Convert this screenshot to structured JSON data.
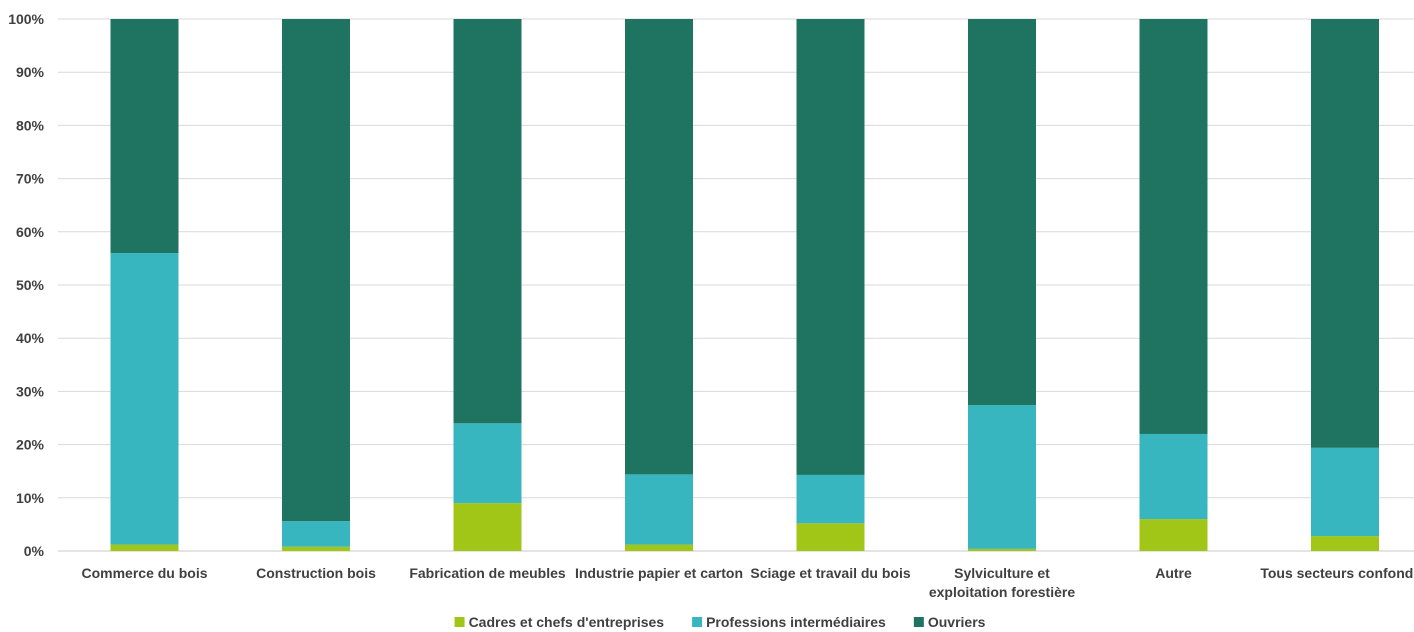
{
  "chart_data": {
    "type": "bar",
    "stacked": "percent",
    "title": "",
    "xlabel": "",
    "ylabel": "",
    "ylim": [
      0,
      100
    ],
    "yticks": [
      "0%",
      "10%",
      "20%",
      "30%",
      "40%",
      "50%",
      "60%",
      "70%",
      "80%",
      "90%",
      "100%"
    ],
    "grid": true,
    "legend": "bottom",
    "categories": [
      [
        "Commerce du bois"
      ],
      [
        "Construction bois"
      ],
      [
        "Fabrication de meubles"
      ],
      [
        "Industrie papier et carton"
      ],
      [
        "Sciage et travail du bois"
      ],
      [
        "Sylviculture et",
        "exploitation forestière"
      ],
      [
        "Autre"
      ],
      [
        "Tous secteurs confondus"
      ]
    ],
    "series": [
      {
        "name": "Cadres et chefs d'entreprises",
        "color": "#A2C617",
        "values": [
          1.2,
          0.8,
          9.0,
          1.2,
          5.2,
          0.4,
          6.0,
          2.8
        ]
      },
      {
        "name": "Professions intermédiaires",
        "color": "#38B6BF",
        "values": [
          54.8,
          4.8,
          15.0,
          13.2,
          9.1,
          27.0,
          16.0,
          16.6
        ]
      },
      {
        "name": "Ouvriers",
        "color": "#1E7461",
        "values": [
          44.0,
          94.4,
          76.0,
          85.6,
          85.7,
          72.6,
          78.0,
          80.6
        ]
      }
    ]
  }
}
